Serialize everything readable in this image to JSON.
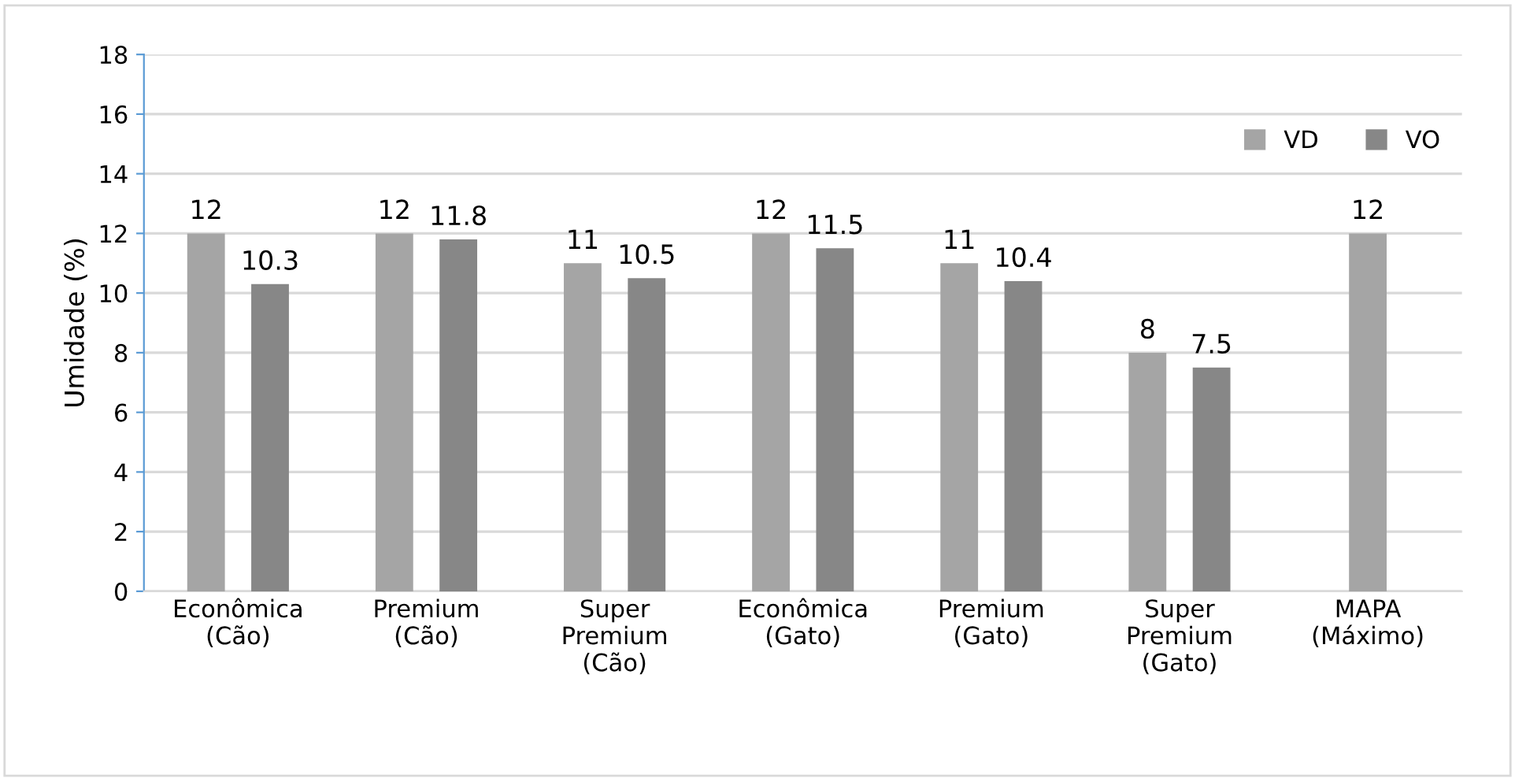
{
  "chart_data": {
    "type": "bar",
    "ylabel": "Umidade (%)",
    "categories": [
      "Econômica\n(Cão)",
      "Premium\n(Cão)",
      "Super\nPremium\n(Cão)",
      "Econômica\n(Gato)",
      "Premium\n(Gato)",
      "Super\nPremium\n(Gato)",
      "MAPA\n(Máximo)"
    ],
    "series": [
      {
        "name": "VD",
        "color": "#a5a5a5",
        "values": [
          12,
          12,
          11,
          12,
          11,
          8,
          12
        ]
      },
      {
        "name": "VO",
        "color": "#878787",
        "values": [
          10.3,
          11.8,
          10.5,
          11.5,
          10.4,
          7.5,
          null
        ]
      }
    ],
    "ylim": [
      0,
      18
    ],
    "yticks": [
      0,
      2,
      4,
      6,
      8,
      10,
      12,
      14,
      16,
      18
    ],
    "grid": "y",
    "legend": "top right",
    "data_labels": true
  }
}
